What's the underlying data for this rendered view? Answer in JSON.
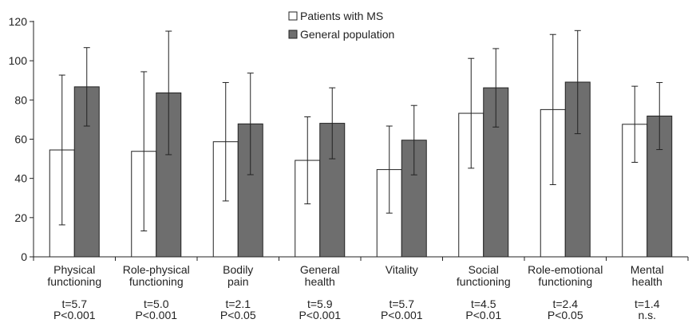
{
  "chart_data": {
    "type": "bar",
    "title": "",
    "xlabel": "",
    "ylabel": "",
    "ylim": [
      0,
      120
    ],
    "yticks": [
      "0",
      "20",
      "40",
      "60",
      "80",
      "100",
      "120"
    ],
    "grid": false,
    "legend_position": "top-center",
    "categories": [
      [
        "Physical",
        "functioning"
      ],
      [
        "Role-physical",
        "functioning"
      ],
      [
        "Bodily",
        "pain"
      ],
      [
        "General",
        "health"
      ],
      [
        "Vitality"
      ],
      [
        "Social",
        "functioning"
      ],
      [
        "Role-emotional",
        "functioning"
      ],
      [
        "Mental",
        "health"
      ]
    ],
    "stats": [
      [
        "t=5.7",
        "P<0.001"
      ],
      [
        "t=5.0",
        "P<0.001"
      ],
      [
        "t=2.1",
        "P<0.05"
      ],
      [
        "t=5.9",
        "P<0.001"
      ],
      [
        "t=5.7",
        "P<0.001"
      ],
      [
        "t=4.5",
        "P<0.01"
      ],
      [
        "t=2.4",
        "P<0.05"
      ],
      [
        "t=1.4",
        "n.s."
      ]
    ],
    "series": [
      {
        "name": "Patients with MS",
        "color": "#ffffff",
        "values": [
          54.5,
          53.8,
          58.7,
          49.2,
          44.5,
          73.2,
          75.1,
          67.6
        ],
        "sd": [
          38.2,
          40.6,
          30.2,
          22.2,
          22.2,
          28.0,
          38.3,
          19.4
        ]
      },
      {
        "name": "General population",
        "color": "#6e6e6e",
        "values": [
          86.7,
          83.6,
          67.8,
          68.1,
          59.5,
          86.2,
          89.1,
          71.8
        ],
        "sd": [
          20.0,
          31.5,
          25.9,
          18.1,
          17.7,
          20.0,
          26.3,
          17.1
        ]
      }
    ]
  }
}
